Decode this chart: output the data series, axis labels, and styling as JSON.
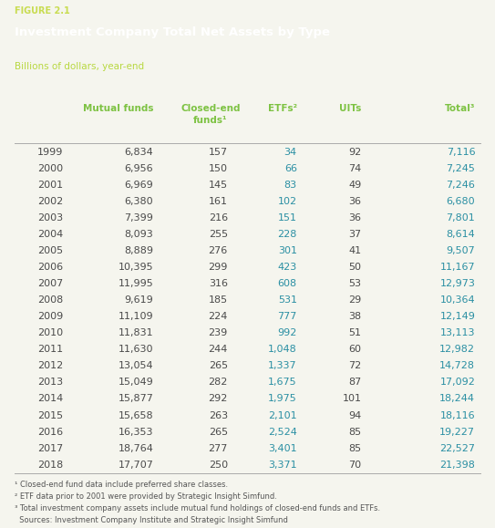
{
  "figure_label": "FIGURE 2.1",
  "title": "Investment Company Total Net Assets by Type",
  "subtitle": "Billions of dollars, year-end",
  "header_bg_color": "#2a8fa3",
  "figure_label_color": "#c8dc50",
  "title_color": "#ffffff",
  "subtitle_color": "#b8d840",
  "col_header_color": "#7dc242",
  "data_color": "#4a4a4a",
  "year_color": "#4a4a4a",
  "etf_color": "#2a8fa3",
  "total_color": "#2a8fa3",
  "years": [
    1999,
    2000,
    2001,
    2002,
    2003,
    2004,
    2005,
    2006,
    2007,
    2008,
    2009,
    2010,
    2011,
    2012,
    2013,
    2014,
    2015,
    2016,
    2017,
    2018
  ],
  "mutual_funds": [
    6834,
    6956,
    6969,
    6380,
    7399,
    8093,
    8889,
    10395,
    11995,
    9619,
    11109,
    11831,
    11630,
    13054,
    15049,
    15877,
    15658,
    16353,
    18764,
    17707
  ],
  "closed_end": [
    157,
    150,
    145,
    161,
    216,
    255,
    276,
    299,
    316,
    185,
    224,
    239,
    244,
    265,
    282,
    292,
    263,
    265,
    277,
    250
  ],
  "etfs": [
    34,
    66,
    83,
    102,
    151,
    228,
    301,
    423,
    608,
    531,
    777,
    992,
    1048,
    1337,
    1675,
    1975,
    2101,
    2524,
    3401,
    3371
  ],
  "uits": [
    92,
    74,
    49,
    36,
    36,
    37,
    41,
    50,
    53,
    29,
    38,
    51,
    60,
    72,
    87,
    101,
    94,
    85,
    85,
    70
  ],
  "totals": [
    7116,
    7245,
    7246,
    6680,
    7801,
    8614,
    9507,
    11167,
    12973,
    10364,
    12149,
    13113,
    12982,
    14728,
    17092,
    18244,
    18116,
    19227,
    22527,
    21398
  ],
  "footnotes": [
    "¹ Closed-end fund data include preferred share classes.",
    "² ETF data prior to 2001 were provided by Strategic Insight Simfund.",
    "³ Total investment company assets include mutual fund holdings of closed-end funds and ETFs.",
    "  Sources: Investment Company Institute and Strategic Insight Simfund"
  ],
  "bg_color": "#f5f5ee",
  "line_color": "#aaaaaa",
  "fn_color": "#555555"
}
